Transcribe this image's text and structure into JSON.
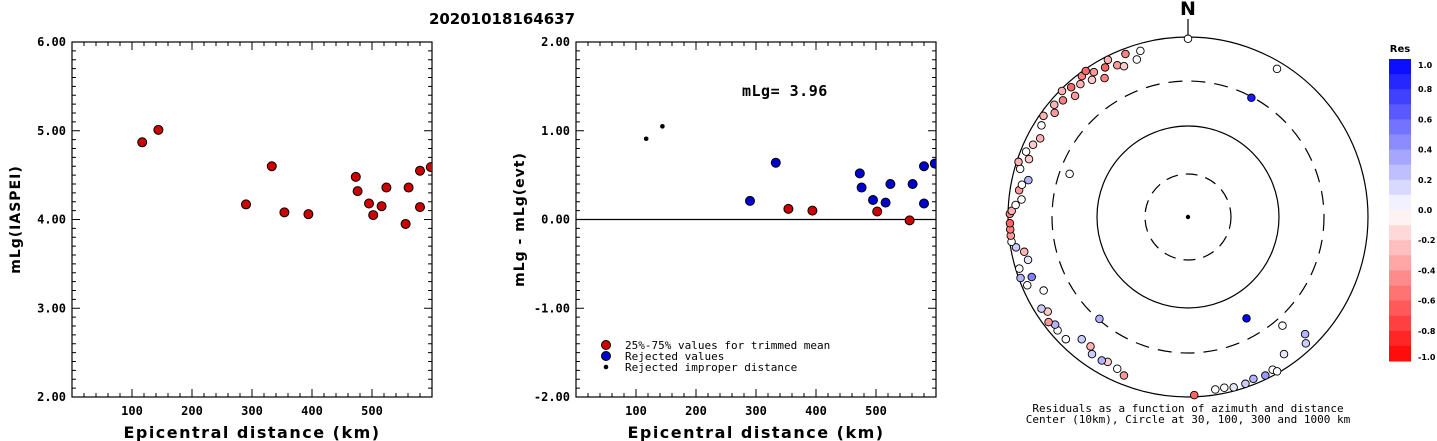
{
  "title": "20201018164637",
  "chart_data": [
    {
      "type": "scatter",
      "xlabel": "Epicentral distance (km)",
      "ylabel": "mLg(IASPEI)",
      "xlim": [
        0,
        600
      ],
      "ylim": [
        2.0,
        6.0
      ],
      "xticks": [
        "100",
        "200",
        "300",
        "400",
        "500"
      ],
      "yticks": [
        "2.00",
        "3.00",
        "4.00",
        "5.00",
        "6.00"
      ],
      "points": [
        {
          "x": 117,
          "y": 4.87
        },
        {
          "x": 144,
          "y": 5.01
        },
        {
          "x": 290,
          "y": 4.17
        },
        {
          "x": 333,
          "y": 4.6
        },
        {
          "x": 354,
          "y": 4.08
        },
        {
          "x": 394,
          "y": 4.06
        },
        {
          "x": 473,
          "y": 4.48
        },
        {
          "x": 476,
          "y": 4.32
        },
        {
          "x": 495,
          "y": 4.18
        },
        {
          "x": 502,
          "y": 4.05
        },
        {
          "x": 516,
          "y": 4.15
        },
        {
          "x": 524,
          "y": 4.36
        },
        {
          "x": 556,
          "y": 3.95
        },
        {
          "x": 561,
          "y": 4.36
        },
        {
          "x": 580,
          "y": 4.14
        },
        {
          "x": 580,
          "y": 4.55
        },
        {
          "x": 598,
          "y": 4.59
        }
      ]
    },
    {
      "type": "scatter",
      "xlabel": "Epicentral distance (km)",
      "ylabel": "mLg - mLg(evt)",
      "annotation": "mLg= 3.96",
      "xlim": [
        0,
        600
      ],
      "ylim": [
        -2.0,
        2.0
      ],
      "xticks": [
        "100",
        "200",
        "300",
        "400",
        "500"
      ],
      "yticks": [
        "-2.00",
        "-1.00",
        "0.00",
        "1.00",
        "2.00"
      ],
      "legend": [
        "25%-75% values for trimmed mean",
        "Rejected values",
        "Rejected improper distance"
      ],
      "series": [
        {
          "name": "25%-75% values for trimmed mean",
          "color": "#cc0000",
          "points": [
            {
              "x": 354,
              "y": 0.12
            },
            {
              "x": 394,
              "y": 0.1
            },
            {
              "x": 502,
              "y": 0.09
            },
            {
              "x": 556,
              "y": -0.01
            }
          ]
        },
        {
          "name": "Rejected values",
          "color": "#0000cc",
          "points": [
            {
              "x": 290,
              "y": 0.21
            },
            {
              "x": 333,
              "y": 0.64
            },
            {
              "x": 473,
              "y": 0.52
            },
            {
              "x": 476,
              "y": 0.36
            },
            {
              "x": 495,
              "y": 0.22
            },
            {
              "x": 516,
              "y": 0.19
            },
            {
              "x": 524,
              "y": 0.4
            },
            {
              "x": 561,
              "y": 0.4
            },
            {
              "x": 580,
              "y": 0.18
            },
            {
              "x": 580,
              "y": 0.6
            },
            {
              "x": 598,
              "y": 0.63
            }
          ]
        },
        {
          "name": "Rejected improper distance",
          "color": "#000000",
          "points": [
            {
              "x": 117,
              "y": 0.91
            },
            {
              "x": 144,
              "y": 1.05
            }
          ]
        }
      ]
    },
    {
      "type": "polar-scatter",
      "north_label": "N",
      "caption_line1": "Residuals as a function of azimuth and distance",
      "caption_line2": "Center (10km), Circle at 30, 100, 300 and 1000 km",
      "colorbar_title": "Res",
      "colorbar_ticks": [
        "1.0",
        "0.8",
        "0.6",
        "0.4",
        "0.2",
        "0.0",
        "-0.2",
        "-0.4",
        "-0.6",
        "-0.8",
        "-1.0"
      ],
      "points": [
        {
          "az": 0,
          "r": 0.99,
          "res": 0.0
        },
        {
          "az": 31,
          "r": 0.96,
          "res": 0.0
        },
        {
          "az": 28,
          "r": 0.75,
          "res": 0.9
        },
        {
          "az": 150,
          "r": 0.65,
          "res": 1.0
        },
        {
          "az": 151,
          "r": 0.97,
          "res": 0.0
        },
        {
          "az": 145,
          "r": 0.93,
          "res": 0.1
        },
        {
          "az": 150,
          "r": 0.99,
          "res": 0.0
        },
        {
          "az": 154,
          "r": 0.98,
          "res": 0.4
        },
        {
          "az": 158,
          "r": 0.97,
          "res": 0.3
        },
        {
          "az": 161,
          "r": 0.98,
          "res": 0.2
        },
        {
          "az": 165,
          "r": 0.98,
          "res": 0.1
        },
        {
          "az": 168,
          "r": 0.97,
          "res": 0.0
        },
        {
          "az": 171,
          "r": 0.97,
          "res": 0.0
        },
        {
          "az": 178,
          "r": 0.99,
          "res": -0.6
        },
        {
          "az": 137,
          "r": 0.96,
          "res": 0.2
        },
        {
          "az": 135,
          "r": 0.92,
          "res": 0.3
        },
        {
          "az": 139,
          "r": 0.8,
          "res": 0.0
        },
        {
          "az": 202,
          "r": 0.95,
          "res": -0.4
        },
        {
          "az": 205,
          "r": 0.93,
          "res": 0.0
        },
        {
          "az": 209,
          "r": 0.92,
          "res": -0.2
        },
        {
          "az": 211,
          "r": 0.93,
          "res": 0.3
        },
        {
          "az": 215,
          "r": 0.93,
          "res": 0.2
        },
        {
          "az": 217,
          "r": 0.9,
          "res": -0.3
        },
        {
          "az": 221,
          "r": 0.9,
          "res": 0.2
        },
        {
          "az": 225,
          "r": 0.96,
          "res": 0.0
        },
        {
          "az": 229,
          "r": 0.96,
          "res": 0.0
        },
        {
          "az": 231,
          "r": 0.95,
          "res": 0.3
        },
        {
          "az": 233,
          "r": 0.97,
          "res": -0.4
        },
        {
          "az": 236,
          "r": 0.94,
          "res": -0.2
        },
        {
          "az": 238,
          "r": 0.96,
          "res": 0.2
        },
        {
          "az": 221,
          "r": 0.75,
          "res": 0.3
        },
        {
          "az": 243,
          "r": 0.9,
          "res": 0.0
        },
        {
          "az": 247,
          "r": 0.97,
          "res": 0.0
        },
        {
          "az": 249,
          "r": 0.93,
          "res": 0.5
        },
        {
          "az": 250,
          "r": 0.99,
          "res": 0.3
        },
        {
          "az": 253,
          "r": 0.98,
          "res": 0.0
        },
        {
          "az": 255,
          "r": 0.92,
          "res": 0.1
        },
        {
          "az": 258,
          "r": 0.93,
          "res": -0.3
        },
        {
          "az": 260,
          "r": 0.97,
          "res": 0.2
        },
        {
          "az": 262,
          "r": 0.99,
          "res": 0.0
        },
        {
          "az": 264,
          "r": 0.99,
          "res": -0.4
        },
        {
          "az": 266,
          "r": 0.99,
          "res": -0.5
        },
        {
          "az": 268,
          "r": 0.99,
          "res": -0.6
        },
        {
          "az": 271,
          "r": 0.99,
          "res": -0.5
        },
        {
          "az": 272,
          "r": 0.98,
          "res": -0.3
        },
        {
          "az": 274,
          "r": 0.96,
          "res": 0.0
        },
        {
          "az": 276,
          "r": 0.93,
          "res": 0.0
        },
        {
          "az": 279,
          "r": 0.95,
          "res": -0.4
        },
        {
          "az": 281,
          "r": 0.94,
          "res": 0.0
        },
        {
          "az": 283,
          "r": 0.91,
          "res": 0.3
        },
        {
          "az": 286,
          "r": 0.97,
          "res": 0.0
        },
        {
          "az": 288,
          "r": 0.99,
          "res": -0.3
        },
        {
          "az": 290,
          "r": 0.94,
          "res": -0.2
        },
        {
          "az": 292,
          "r": 0.97,
          "res": 0.0
        },
        {
          "az": 295,
          "r": 0.95,
          "res": -0.2
        },
        {
          "az": 298,
          "r": 0.93,
          "res": -0.3
        },
        {
          "az": 290,
          "r": 0.7,
          "res": 0.0
        },
        {
          "az": 302,
          "r": 0.96,
          "res": 0.0
        },
        {
          "az": 305,
          "r": 0.98,
          "res": -0.3
        },
        {
          "az": 308,
          "r": 0.94,
          "res": -0.4
        },
        {
          "az": 310,
          "r": 0.97,
          "res": -0.3
        },
        {
          "az": 313,
          "r": 0.95,
          "res": -0.5
        },
        {
          "az": 315,
          "r": 0.99,
          "res": -0.3
        },
        {
          "az": 317,
          "r": 0.92,
          "res": -0.4
        },
        {
          "az": 318,
          "r": 0.97,
          "res": -0.6
        },
        {
          "az": 321,
          "r": 0.95,
          "res": -0.3
        },
        {
          "az": 323,
          "r": 0.98,
          "res": -0.5
        },
        {
          "az": 325,
          "r": 0.93,
          "res": -0.2
        },
        {
          "az": 327,
          "r": 0.96,
          "res": -0.4
        },
        {
          "az": 329,
          "r": 0.9,
          "res": -0.5
        },
        {
          "az": 331,
          "r": 0.95,
          "res": -0.6
        },
        {
          "az": 333,
          "r": 0.98,
          "res": -0.3
        },
        {
          "az": 335,
          "r": 0.93,
          "res": -0.4
        },
        {
          "az": 337,
          "r": 0.91,
          "res": -0.2
        },
        {
          "az": 339,
          "r": 0.97,
          "res": -0.5
        },
        {
          "az": 325,
          "r": 0.99,
          "res": -0.6
        },
        {
          "az": 342,
          "r": 0.92,
          "res": 0.0
        },
        {
          "az": 344,
          "r": 0.96,
          "res": 0.0
        }
      ]
    }
  ]
}
